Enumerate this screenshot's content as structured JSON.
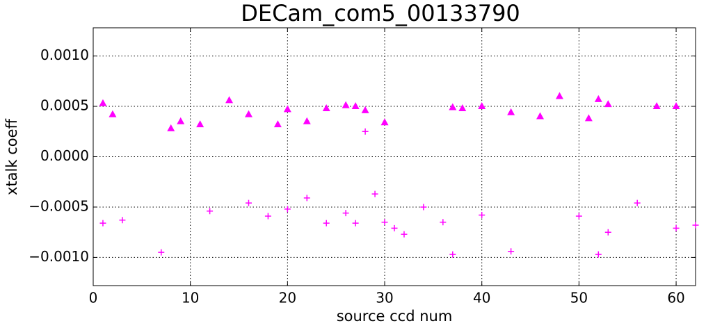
{
  "chart_data": {
    "type": "scatter",
    "title": "DECam_com5_00133790",
    "x_label": "source ccd num",
    "y_label": "xtalk coeff",
    "xlim": [
      0,
      62
    ],
    "ylim": [
      -0.00128,
      0.00128
    ],
    "xticks": [
      0,
      10,
      20,
      30,
      40,
      50,
      60
    ],
    "yticks": [
      {
        "value": -0.001,
        "label": "−0.0010"
      },
      {
        "value": -0.0005,
        "label": "−0.0005"
      },
      {
        "value": 0,
        "label": "0.0000"
      },
      {
        "value": 0.0005,
        "label": "0.0005"
      },
      {
        "value": 0.001,
        "label": "0.0010"
      }
    ],
    "grid": true,
    "series": [
      {
        "color": "#ff00ff",
        "marker": "triangle",
        "x": [
          1,
          2,
          8,
          9,
          11,
          14,
          16,
          19,
          20,
          22,
          24,
          26,
          27,
          28,
          30,
          37,
          38,
          40,
          43,
          46,
          48,
          51,
          52,
          53,
          58,
          60
        ],
        "values": [
          0.00053,
          0.00042,
          0.00028,
          0.00035,
          0.00032,
          0.00056,
          0.00042,
          0.00032,
          0.00047,
          0.00035,
          0.00048,
          0.00051,
          0.0005,
          0.00046,
          0.00034,
          0.00049,
          0.00048,
          0.0005,
          0.00044,
          0.0004,
          0.0006,
          0.00038,
          0.00057,
          0.00052,
          0.0005,
          0.0005
        ]
      },
      {
        "color": "#ff00ff",
        "marker": "plus",
        "x": [
          1,
          3,
          7,
          12,
          16,
          18,
          20,
          22,
          24,
          26,
          27,
          28,
          29,
          30,
          31,
          32,
          34,
          36,
          37,
          40,
          43,
          50,
          52,
          53,
          56,
          60,
          62
        ],
        "values": [
          -0.00066,
          -0.00063,
          -0.00095,
          -0.00054,
          -0.00046,
          -0.00059,
          -0.00052,
          -0.00041,
          -0.00066,
          -0.00056,
          -0.00066,
          0.00025,
          -0.00037,
          -0.00065,
          -0.00071,
          -0.00077,
          -0.0005,
          -0.00065,
          -0.00097,
          -0.00058,
          -0.00094,
          -0.00059,
          -0.00097,
          -0.00075,
          -0.00046,
          -0.00071,
          -0.00068
        ]
      }
    ]
  }
}
